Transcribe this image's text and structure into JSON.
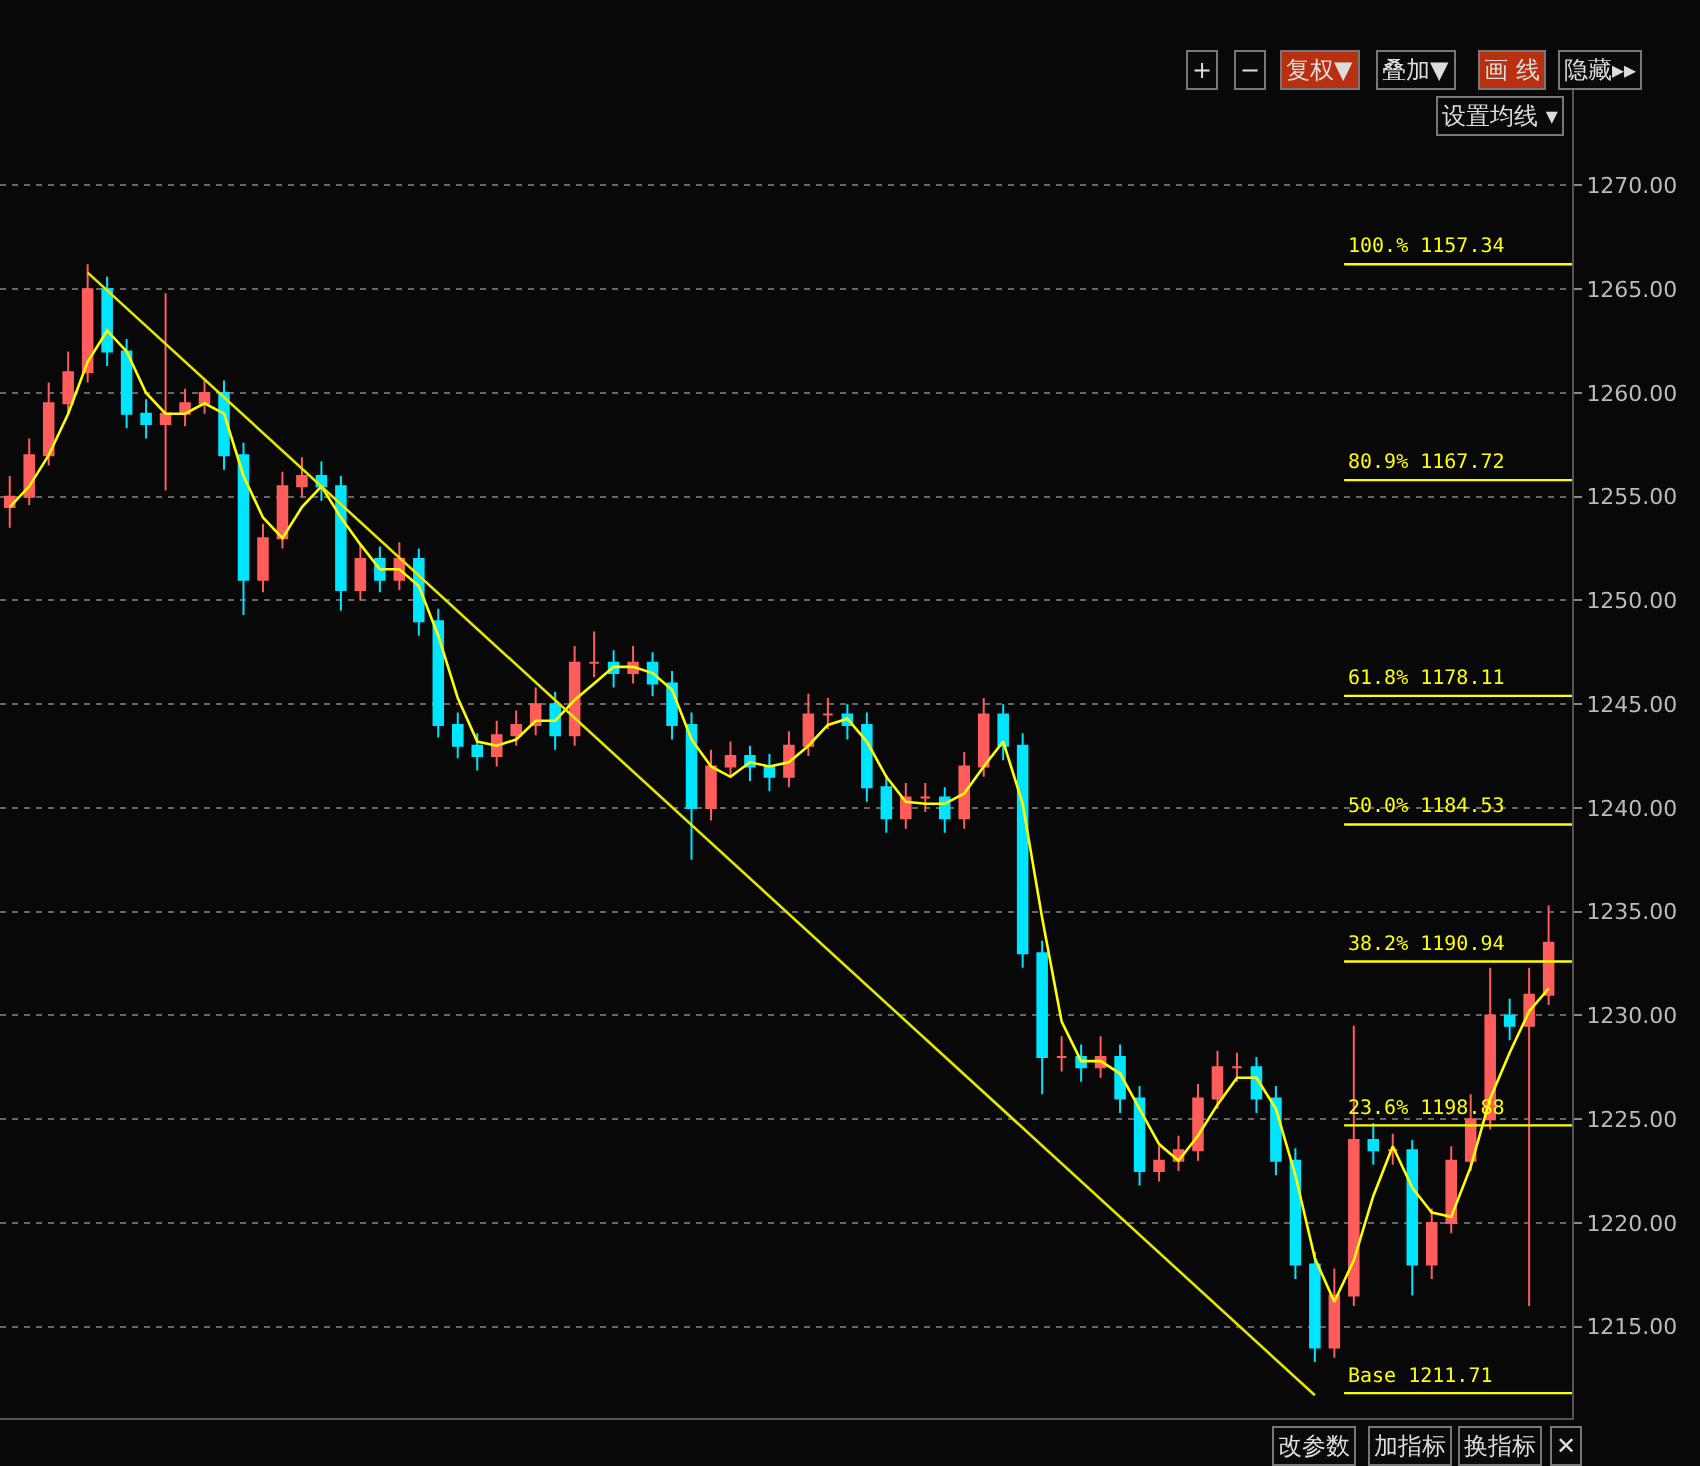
{
  "chart_data": {
    "type": "candlestick",
    "categories": [
      null,
      null,
      null,
      null,
      null,
      null,
      null,
      null,
      null,
      null,
      null,
      null,
      null,
      null,
      null,
      null,
      null,
      null,
      null,
      null,
      null,
      null,
      null,
      null,
      null,
      null,
      null,
      null,
      null,
      null,
      null,
      null,
      null,
      null,
      null,
      null,
      null,
      null,
      null,
      null,
      null,
      null,
      null,
      null,
      null,
      null,
      null,
      null,
      null,
      null,
      null,
      null,
      null,
      null,
      null,
      null,
      null,
      null,
      null,
      null,
      null,
      null,
      null,
      null,
      null,
      null,
      null,
      null,
      null,
      null,
      null,
      null,
      null,
      null,
      null,
      null,
      null,
      null,
      null,
      null
    ],
    "ohlc": [
      [
        1254.5,
        1256,
        1253.5,
        1255
      ],
      [
        1255,
        1257.8,
        1254.6,
        1257
      ],
      [
        1257,
        1260.5,
        1256.5,
        1259.5
      ],
      [
        1259.5,
        1262,
        1259,
        1261
      ],
      [
        1261,
        1266.2,
        1260.5,
        1265
      ],
      [
        1265,
        1265.6,
        1261.3,
        1262
      ],
      [
        1262,
        1262.6,
        1258.3,
        1259
      ],
      [
        1259,
        1259.7,
        1257.8,
        1258.5
      ],
      [
        1258.5,
        1264.8,
        1255.3,
        1259
      ],
      [
        1259,
        1260.2,
        1258.4,
        1259.5
      ],
      [
        1259.5,
        1260.7,
        1259,
        1260
      ],
      [
        1260,
        1260.6,
        1256.3,
        1257
      ],
      [
        1257,
        1257.6,
        1249.3,
        1251
      ],
      [
        1251,
        1253.7,
        1250.4,
        1253
      ],
      [
        1253,
        1256.2,
        1252.5,
        1255.5
      ],
      [
        1255.5,
        1256.9,
        1255,
        1256
      ],
      [
        1256,
        1256.7,
        1254.8,
        1255.5
      ],
      [
        1255.5,
        1256,
        1249.5,
        1250.5
      ],
      [
        1250.5,
        1252.7,
        1250,
        1252
      ],
      [
        1252,
        1252.6,
        1250.4,
        1251
      ],
      [
        1251,
        1252.8,
        1250.5,
        1252
      ],
      [
        1252,
        1252.5,
        1248.3,
        1249
      ],
      [
        1249,
        1249.6,
        1243.4,
        1244
      ],
      [
        1244,
        1244.6,
        1242.4,
        1243
      ],
      [
        1243,
        1243.6,
        1241.8,
        1242.5
      ],
      [
        1242.5,
        1244.2,
        1242,
        1243.5
      ],
      [
        1243.5,
        1244.7,
        1243,
        1244
      ],
      [
        1244,
        1245.8,
        1243.5,
        1245
      ],
      [
        1245,
        1245.6,
        1242.8,
        1243.5
      ],
      [
        1243.5,
        1247.8,
        1243,
        1247
      ],
      [
        1247,
        1248.5,
        1246.3,
        1247
      ],
      [
        1247,
        1247.6,
        1245.8,
        1246.5
      ],
      [
        1246.5,
        1247.8,
        1246,
        1247
      ],
      [
        1247,
        1247.5,
        1245.4,
        1246
      ],
      [
        1246,
        1246.6,
        1243.3,
        1244
      ],
      [
        1244,
        1244.6,
        1237.5,
        1240
      ],
      [
        1240,
        1242.8,
        1239.4,
        1242
      ],
      [
        1242,
        1243.2,
        1241.5,
        1242.5
      ],
      [
        1242.5,
        1243,
        1241.3,
        1242
      ],
      [
        1242,
        1242.6,
        1240.8,
        1241.5
      ],
      [
        1241.5,
        1243.7,
        1241,
        1243
      ],
      [
        1243,
        1245.5,
        1242.5,
        1244.5
      ],
      [
        1244.5,
        1245.3,
        1243.8,
        1244.5
      ],
      [
        1244.5,
        1245,
        1243.3,
        1244
      ],
      [
        1244,
        1244.6,
        1240.3,
        1241
      ],
      [
        1241,
        1241.6,
        1238.8,
        1239.5
      ],
      [
        1239.5,
        1241.2,
        1239,
        1240.5
      ],
      [
        1240.5,
        1241.2,
        1239.8,
        1240.5
      ],
      [
        1240.5,
        1241,
        1238.8,
        1239.5
      ],
      [
        1239.5,
        1242.7,
        1239,
        1242
      ],
      [
        1242,
        1245.3,
        1241.5,
        1244.5
      ],
      [
        1244.5,
        1245,
        1242.3,
        1243
      ],
      [
        1243,
        1243.6,
        1232.3,
        1233
      ],
      [
        1233,
        1233.6,
        1226.2,
        1228
      ],
      [
        1228,
        1229,
        1227.3,
        1228
      ],
      [
        1228,
        1228.6,
        1226.8,
        1227.5
      ],
      [
        1227.5,
        1229,
        1227,
        1228
      ],
      [
        1228,
        1228.6,
        1225.3,
        1226
      ],
      [
        1226,
        1226.6,
        1221.8,
        1222.5
      ],
      [
        1222.5,
        1223.7,
        1222,
        1223
      ],
      [
        1223,
        1224.2,
        1222.5,
        1223.5
      ],
      [
        1223.5,
        1226.7,
        1223,
        1226
      ],
      [
        1226,
        1228.3,
        1225.5,
        1227.5
      ],
      [
        1227.5,
        1228.2,
        1226.8,
        1227.5
      ],
      [
        1227.5,
        1228,
        1225.3,
        1226
      ],
      [
        1226,
        1226.6,
        1222.3,
        1223
      ],
      [
        1223,
        1223.6,
        1217.3,
        1218
      ],
      [
        1218,
        1218.6,
        1213.3,
        1214
      ],
      [
        1214,
        1217.8,
        1213.5,
        1216.5
      ],
      [
        1216.5,
        1229.5,
        1216,
        1224
      ],
      [
        1224,
        1224.8,
        1222.8,
        1223.5
      ],
      [
        1223.5,
        1224.3,
        1222.8,
        1223.5
      ],
      [
        1223.5,
        1224,
        1216.5,
        1218
      ],
      [
        1218,
        1220.7,
        1217.3,
        1220
      ],
      [
        1220,
        1223.7,
        1219.5,
        1223
      ],
      [
        1223,
        1226.2,
        1222.5,
        1225
      ],
      [
        1225,
        1232.3,
        1224.5,
        1230
      ],
      [
        1230,
        1230.8,
        1228.8,
        1229.5
      ],
      [
        1229.5,
        1232.3,
        1216,
        1231
      ],
      [
        1231,
        1235.3,
        1230.5,
        1233.5
      ]
    ],
    "colors": [
      "#ff5c5c",
      "#ff5c5c",
      "#ff5c5c",
      "#ff5c5c",
      "#ff5c5c",
      "#00e5ff",
      "#00e5ff",
      "#00e5ff",
      "#ff5c5c",
      "#ff5c5c",
      "#ff5c5c",
      "#00e5ff",
      "#00e5ff",
      "#ff5c5c",
      "#ff5c5c",
      "#ff5c5c",
      "#00e5ff",
      "#00e5ff",
      "#ff5c5c",
      "#00e5ff",
      "#ff5c5c",
      "#00e5ff",
      "#00e5ff",
      "#00e5ff",
      "#00e5ff",
      "#ff5c5c",
      "#ff5c5c",
      "#ff5c5c",
      "#00e5ff",
      "#ff5c5c",
      "#ff5c5c",
      "#00e5ff",
      "#ff5c5c",
      "#00e5ff",
      "#00e5ff",
      "#00e5ff",
      "#ff5c5c",
      "#ff5c5c",
      "#00e5ff",
      "#00e5ff",
      "#ff5c5c",
      "#ff5c5c",
      "#ff5c5c",
      "#00e5ff",
      "#00e5ff",
      "#00e5ff",
      "#ff5c5c",
      "#ff5c5c",
      "#00e5ff",
      "#ff5c5c",
      "#ff5c5c",
      "#00e5ff",
      "#00e5ff",
      "#00e5ff",
      "#ff5c5c",
      "#00e5ff",
      "#ff5c5c",
      "#00e5ff",
      "#00e5ff",
      "#ff5c5c",
      "#ff5c5c",
      "#ff5c5c",
      "#ff5c5c",
      "#ff5c5c",
      "#00e5ff",
      "#00e5ff",
      "#00e5ff",
      "#00e5ff",
      "#ff5c5c",
      "#ff5c5c",
      "#00e5ff",
      "#ff5c5c",
      "#00e5ff",
      "#ff5c5c",
      "#ff5c5c",
      "#ff5c5c",
      "#ff5c5c",
      "#00e5ff",
      "#ff5c5c",
      "#ff5c5c"
    ],
    "series": [
      {
        "type": "line",
        "color": "#ffff00",
        "values": [
          1254.5,
          1255.5,
          1257,
          1259,
          1261.5,
          1263,
          1262,
          1260,
          1259,
          1259,
          1259.5,
          1259,
          1256,
          1254,
          1253,
          1254.5,
          1255.5,
          1254,
          1252.7,
          1251.5,
          1251.5,
          1250.7,
          1248.3,
          1245.3,
          1243.2,
          1243,
          1243.3,
          1244.2,
          1244.2,
          1245.2,
          1246,
          1246.8,
          1246.8,
          1246.5,
          1245.7,
          1243.3,
          1242,
          1241.5,
          1242.2,
          1242,
          1242.2,
          1243,
          1244,
          1244.3,
          1243.2,
          1241.5,
          1240.3,
          1240.2,
          1240.2,
          1240.7,
          1242,
          1243.2,
          1240.2,
          1234.7,
          1229.7,
          1227.8,
          1227.8,
          1227.2,
          1225.5,
          1223.8,
          1223,
          1224.2,
          1225.7,
          1227,
          1227,
          1225.5,
          1222.3,
          1218.3,
          1216.2,
          1218.2,
          1221.3,
          1223.7,
          1221.7,
          1220.5,
          1220.3,
          1222.7,
          1226,
          1228.2,
          1230.2,
          1231.3
        ]
      },
      {
        "type": "line",
        "color": "#e6e600",
        "values": [
          null,
          null,
          null,
          null,
          1265.8,
          null,
          null,
          null,
          null,
          null,
          null,
          null,
          null,
          null,
          null,
          null,
          null,
          null,
          null,
          null,
          null,
          null,
          null,
          null,
          null,
          null,
          null,
          null,
          null,
          null,
          null,
          null,
          null,
          null,
          null,
          null,
          null,
          null,
          null,
          null,
          null,
          null,
          null,
          null,
          null,
          null,
          null,
          null,
          null,
          null,
          null,
          null,
          null,
          null,
          null,
          null,
          null,
          null,
          null,
          null,
          null,
          null,
          null,
          null,
          null,
          null,
          null,
          1211.7,
          null,
          null,
          null,
          null,
          null,
          null,
          null,
          null,
          null,
          null,
          null,
          null
        ]
      }
    ],
    "ylim": [
      1210.6,
      1274.6
    ],
    "yticks": [
      {
        "value": 1215,
        "label": "1215.00"
      },
      {
        "value": 1220,
        "label": "1220.00"
      },
      {
        "value": 1225,
        "label": "1225.00"
      },
      {
        "value": 1230,
        "label": "1230.00"
      },
      {
        "value": 1235,
        "label": "1235.00"
      },
      {
        "value": 1240,
        "label": "1240.00"
      },
      {
        "value": 1245,
        "label": "1245.00"
      },
      {
        "value": 1250,
        "label": "1250.00"
      },
      {
        "value": 1255,
        "label": "1255.00"
      },
      {
        "value": 1260,
        "label": "1260.00"
      },
      {
        "value": 1265,
        "label": "1265.00"
      },
      {
        "value": 1270,
        "label": "1270.00"
      }
    ],
    "tick_labels": "y",
    "grid": "y",
    "ref_lines": [
      {
        "axis": "y",
        "value": 1266.2,
        "color": "#ffff00"
      },
      {
        "axis": "y",
        "value": 1255.8,
        "color": "#ffff00"
      },
      {
        "axis": "y",
        "value": 1245.4,
        "color": "#ffff00"
      },
      {
        "axis": "y",
        "value": 1239.2,
        "color": "#ffff00"
      },
      {
        "axis": "y",
        "value": 1232.6,
        "color": "#ffff00"
      },
      {
        "axis": "y",
        "value": 1224.7,
        "color": "#ffff00"
      },
      {
        "axis": "y",
        "value": 1211.8,
        "color": "#ffff00"
      }
    ],
    "annotations": [
      "100.% 1157.34",
      "80.9% 1167.72",
      "61.8% 1178.11",
      "50.0% 1184.53",
      "38.2% 1190.94",
      "23.6% 1198.88",
      "Base 1211.71",
      "+",
      "−",
      "复权▼",
      "叠加▼",
      "画 线",
      "隐藏▸▸",
      "设置均线 ▾",
      "改参数",
      "加指标",
      "换指标",
      "✕"
    ]
  }
}
